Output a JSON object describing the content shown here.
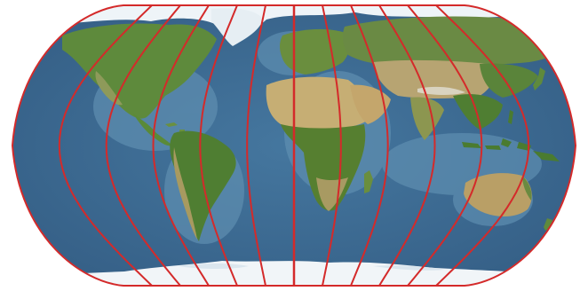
{
  "map": {
    "projection": "Robinson",
    "basemap": "satellite-relief",
    "meridian_interval_deg": 30,
    "meridians_deg": [
      -180,
      -150,
      -120,
      -90,
      -60,
      -30,
      0,
      30,
      60,
      90,
      120,
      150,
      180
    ],
    "central_meridian_deg": 0,
    "colors": {
      "ocean_deep": "#3f6f98",
      "ocean_shelf": "#6a97b6",
      "land_green": "#5f8a3a",
      "land_desert": "#c2ab74",
      "land_dry": "#a99a62",
      "ice": "#eef4f8",
      "meridian_lines": "#d42a2a",
      "background": "#ffffff"
    }
  }
}
